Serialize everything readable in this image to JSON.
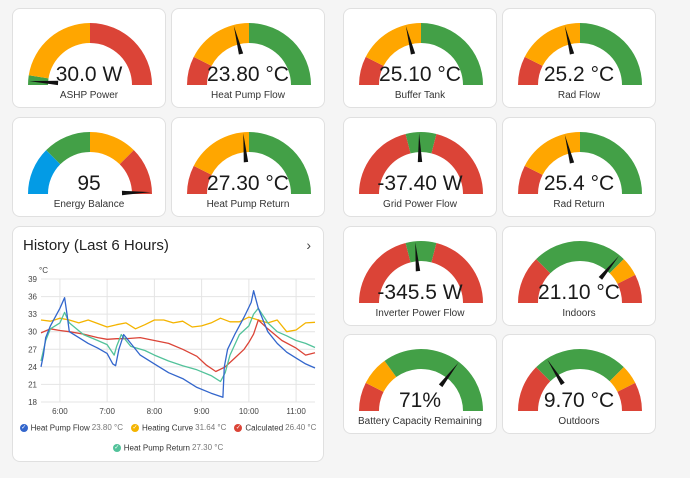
{
  "colors": {
    "red": "#db4437",
    "orange": "#ffa600",
    "green": "#43a047",
    "blue": "#039be5"
  },
  "gauges": [
    {
      "id": "ashp-power",
      "value": "30.0 W",
      "name": "ASHP Power",
      "fraction": 0.02,
      "segments": [
        {
          "from": 0,
          "to": 0.05,
          "color": "#43a047"
        },
        {
          "from": 0.05,
          "to": 0.5,
          "color": "#ffa600"
        },
        {
          "from": 0.5,
          "to": 1,
          "color": "#db4437"
        }
      ]
    },
    {
      "id": "heat-pump-flow",
      "value": "23.80 °C",
      "name": "Heat Pump Flow",
      "fraction": 0.42,
      "segments": [
        {
          "from": 0,
          "to": 0.15,
          "color": "#db4437"
        },
        {
          "from": 0.15,
          "to": 0.5,
          "color": "#ffa600"
        },
        {
          "from": 0.5,
          "to": 1,
          "color": "#43a047"
        }
      ]
    },
    {
      "id": "buffer-tank",
      "value": "25.10 °C",
      "name": "Buffer Tank",
      "fraction": 0.42,
      "segments": [
        {
          "from": 0,
          "to": 0.15,
          "color": "#db4437"
        },
        {
          "from": 0.15,
          "to": 0.5,
          "color": "#ffa600"
        },
        {
          "from": 0.5,
          "to": 1,
          "color": "#43a047"
        }
      ]
    },
    {
      "id": "rad-flow",
      "value": "25.2 °C",
      "name": "Rad Flow",
      "fraction": 0.42,
      "segments": [
        {
          "from": 0,
          "to": 0.15,
          "color": "#db4437"
        },
        {
          "from": 0.15,
          "to": 0.5,
          "color": "#ffa600"
        },
        {
          "from": 0.5,
          "to": 1,
          "color": "#43a047"
        }
      ]
    },
    {
      "id": "energy-balance",
      "value": "95",
      "name": "Energy Balance",
      "fraction": 0.99,
      "segments": [
        {
          "from": 0,
          "to": 0.25,
          "color": "#039be5"
        },
        {
          "from": 0.25,
          "to": 0.5,
          "color": "#43a047"
        },
        {
          "from": 0.5,
          "to": 0.75,
          "color": "#ffa600"
        },
        {
          "from": 0.75,
          "to": 1,
          "color": "#db4437"
        }
      ]
    },
    {
      "id": "heat-pump-return",
      "value": "27.30 °C",
      "name": "Heat Pump Return",
      "fraction": 0.47,
      "segments": [
        {
          "from": 0,
          "to": 0.15,
          "color": "#db4437"
        },
        {
          "from": 0.15,
          "to": 0.5,
          "color": "#ffa600"
        },
        {
          "from": 0.5,
          "to": 1,
          "color": "#43a047"
        }
      ]
    },
    {
      "id": "grid-power-flow",
      "value": "-37.40 W",
      "name": "Grid Power Flow",
      "fraction": 0.49,
      "segments": [
        {
          "from": 0,
          "to": 0.42,
          "color": "#db4437"
        },
        {
          "from": 0.42,
          "to": 0.58,
          "color": "#43a047"
        },
        {
          "from": 0.58,
          "to": 1,
          "color": "#db4437"
        }
      ]
    },
    {
      "id": "rad-return",
      "value": "25.4 °C",
      "name": "Rad Return",
      "fraction": 0.42,
      "segments": [
        {
          "from": 0,
          "to": 0.15,
          "color": "#db4437"
        },
        {
          "from": 0.15,
          "to": 0.5,
          "color": "#ffa600"
        },
        {
          "from": 0.5,
          "to": 1,
          "color": "#43a047"
        }
      ]
    },
    {
      "id": "inverter-power-flow",
      "value": "-345.5 W",
      "name": "Inverter Power Flow",
      "fraction": 0.47,
      "segments": [
        {
          "from": 0,
          "to": 0.42,
          "color": "#db4437"
        },
        {
          "from": 0.42,
          "to": 0.58,
          "color": "#43a047"
        },
        {
          "from": 0.58,
          "to": 1,
          "color": "#db4437"
        }
      ]
    },
    {
      "id": "indoors",
      "value": "21.10 °C",
      "name": "Indoors",
      "fraction": 0.72,
      "segments": [
        {
          "from": 0,
          "to": 0.25,
          "color": "#db4437"
        },
        {
          "from": 0.25,
          "to": 0.75,
          "color": "#43a047"
        },
        {
          "from": 0.75,
          "to": 0.85,
          "color": "#ffa600"
        },
        {
          "from": 0.85,
          "to": 1,
          "color": "#db4437"
        }
      ]
    },
    {
      "id": "battery-capacity",
      "value": "71%",
      "name": "Battery Capacity Remaining",
      "fraction": 0.71,
      "segments": [
        {
          "from": 0,
          "to": 0.15,
          "color": "#db4437"
        },
        {
          "from": 0.15,
          "to": 0.3,
          "color": "#ffa600"
        },
        {
          "from": 0.3,
          "to": 1,
          "color": "#43a047"
        }
      ]
    },
    {
      "id": "outdoors",
      "value": "9.70 °C",
      "name": "Outdoors",
      "fraction": 0.32,
      "segments": [
        {
          "from": 0,
          "to": 0.25,
          "color": "#db4437"
        },
        {
          "from": 0.25,
          "to": 0.75,
          "color": "#43a047"
        },
        {
          "from": 0.75,
          "to": 0.85,
          "color": "#ffa600"
        },
        {
          "from": 0.85,
          "to": 1,
          "color": "#db4437"
        }
      ]
    }
  ],
  "history": {
    "title": "History (Last 6 Hours)",
    "arrow": "›",
    "legend": [
      {
        "label": "Heat Pump Flow",
        "value": "23.80 °C",
        "color": "#3366cc"
      },
      {
        "label": "Heating Curve",
        "value": "31.64 °C",
        "color": "#f4b400"
      },
      {
        "label": "Calculated",
        "value": "26.40 °C",
        "color": "#db4437"
      },
      {
        "label": "Heat Pump Return",
        "value": "27.30 °C",
        "color": "#52c29a"
      }
    ]
  },
  "chart_data": {
    "type": "line",
    "ylabel": "°C",
    "ylim": [
      18,
      39
    ],
    "yticks": [
      18,
      21,
      24,
      27,
      30,
      33,
      36,
      39
    ],
    "xlim": [
      5.6,
      11.4
    ],
    "xticks": [
      6,
      7,
      8,
      9,
      10,
      11
    ],
    "xtick_labels": [
      "6:00",
      "7:00",
      "8:00",
      "9:00",
      "10:00",
      "11:00"
    ],
    "series": [
      {
        "name": "Heat Pump Flow",
        "color": "#3366cc",
        "x": [
          5.6,
          5.65,
          5.7,
          5.8,
          5.9,
          6.0,
          6.1,
          6.15,
          6.2,
          6.4,
          6.6,
          6.8,
          7.0,
          7.12,
          7.18,
          7.25,
          7.35,
          7.5,
          7.7,
          8.0,
          8.3,
          8.6,
          8.9,
          9.2,
          9.45,
          9.48,
          9.55,
          9.7,
          9.9,
          10.05,
          10.1,
          10.2,
          10.4,
          10.6,
          10.8,
          11.0,
          11.2,
          11.4
        ],
        "y": [
          24,
          26,
          29,
          31,
          32.5,
          34,
          35.8,
          33,
          30,
          29,
          28,
          27.2,
          26.3,
          24.5,
          24.2,
          27,
          29.5,
          28,
          26,
          24.5,
          23,
          22,
          20.5,
          19.5,
          18.8,
          24,
          27,
          29.5,
          32.5,
          35,
          37,
          34,
          30,
          28,
          26.5,
          25.5,
          24.5,
          23.8
        ]
      },
      {
        "name": "Heating Curve",
        "color": "#f4b400",
        "x": [
          5.6,
          5.8,
          6.0,
          6.2,
          6.4,
          6.6,
          6.8,
          7.0,
          7.2,
          7.4,
          7.6,
          7.8,
          8.0,
          8.2,
          8.4,
          8.6,
          8.8,
          9.0,
          9.2,
          9.4,
          9.6,
          9.8,
          10.0,
          10.2,
          10.4,
          10.6,
          10.8,
          11.0,
          11.2,
          11.4
        ],
        "y": [
          32,
          31.8,
          32.3,
          32,
          31.5,
          32,
          31.4,
          30.8,
          31.2,
          31.5,
          30.5,
          31.2,
          32,
          32,
          31.5,
          31.8,
          30.8,
          31,
          31.5,
          32.3,
          31.7,
          31.7,
          32.5,
          32,
          31.5,
          32,
          30,
          30.3,
          31.5,
          31.6
        ]
      },
      {
        "name": "Calculated",
        "color": "#db4437",
        "x": [
          5.6,
          5.8,
          6.0,
          6.2,
          6.5,
          6.8,
          7.0,
          7.2,
          7.4,
          7.7,
          8.0,
          8.3,
          8.6,
          8.9,
          9.1,
          9.3,
          9.5,
          9.7,
          9.9,
          10.0,
          10.1,
          10.2,
          10.4,
          10.7,
          11.0,
          11.2,
          11.4
        ],
        "y": [
          29.8,
          30.5,
          30.2,
          30,
          29.6,
          29,
          28.7,
          28.8,
          28.8,
          29,
          28.5,
          28,
          27,
          25.8,
          24.3,
          23.2,
          24,
          25.5,
          27,
          28.2,
          29.6,
          32,
          30.5,
          28.5,
          27.2,
          26,
          26.4
        ]
      },
      {
        "name": "Heat Pump Return",
        "color": "#52c29a",
        "x": [
          5.6,
          5.7,
          5.8,
          6.0,
          6.1,
          6.2,
          6.5,
          6.8,
          7.0,
          7.15,
          7.2,
          7.3,
          7.5,
          7.8,
          8.0,
          8.3,
          8.6,
          8.9,
          9.2,
          9.4,
          9.5,
          9.6,
          9.8,
          10.0,
          10.1,
          10.2,
          10.4,
          10.6,
          10.8,
          11.0,
          11.2,
          11.4
        ],
        "y": [
          25,
          28.5,
          30.5,
          31.5,
          33.3,
          31.5,
          29.5,
          28.5,
          27.8,
          26,
          27.5,
          29.5,
          27.5,
          26.8,
          26,
          25,
          24.2,
          23.5,
          22.5,
          21.5,
          23,
          26,
          29.5,
          31,
          33,
          34,
          31.5,
          30,
          29.3,
          28.5,
          28,
          27.3
        ]
      }
    ]
  }
}
